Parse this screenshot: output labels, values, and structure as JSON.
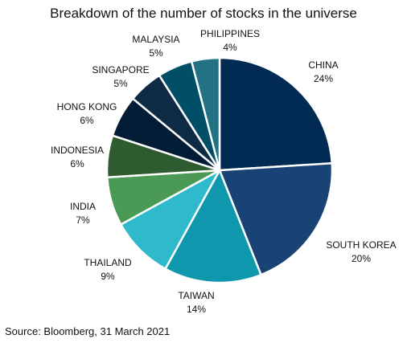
{
  "chart_data": {
    "type": "pie",
    "title": "Breakdown of the number of stocks in the universe",
    "source": "Source: Bloomberg, 31 March 2021",
    "slices": [
      {
        "name": "CHINA",
        "label": "24%",
        "value": 24,
        "color": "#012b52"
      },
      {
        "name": "SOUTH KOREA",
        "label": "20%",
        "value": 20,
        "color": "#184374"
      },
      {
        "name": "TAIWAN",
        "label": "14%",
        "value": 14,
        "color": "#0e97ad"
      },
      {
        "name": "THAILAND",
        "label": "9%",
        "value": 9,
        "color": "#2ebacb"
      },
      {
        "name": "INDIA",
        "label": "7%",
        "value": 7,
        "color": "#4a9954"
      },
      {
        "name": "INDONESIA",
        "label": "6%",
        "value": 6,
        "color": "#2e5c30"
      },
      {
        "name": "HONG KONG",
        "label": "6%",
        "value": 6,
        "color": "#011c34"
      },
      {
        "name": "SINGAPORE",
        "label": "5%",
        "value": 5,
        "color": "#0e2b45"
      },
      {
        "name": "MALAYSIA",
        "label": "5%",
        "value": 5,
        "color": "#014f66"
      },
      {
        "name": "PHILIPPINES",
        "label": "4%",
        "value": 4,
        "color": "#237284"
      }
    ]
  }
}
